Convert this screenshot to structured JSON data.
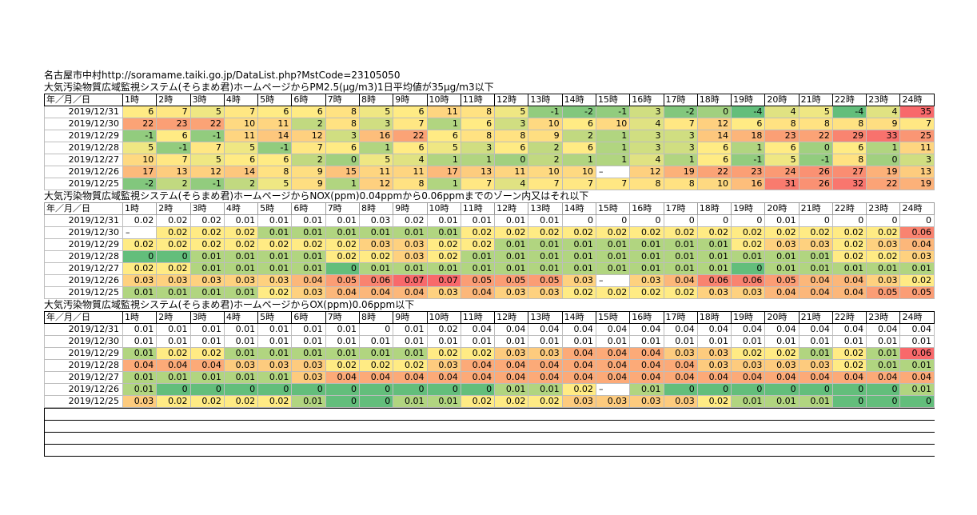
{
  "heading": {
    "city": "名古屋市中村",
    "url": "http://soramame.taiki.go.jp/DataList.php?MstCode=23105050"
  },
  "hour_headers": [
    "年／月／日",
    "1時",
    "2時",
    "3時",
    "4時",
    "5時",
    "6時",
    "7時",
    "8時",
    "9時",
    "10時",
    "11時",
    "12時",
    "13時",
    "14時",
    "15時",
    "16時",
    "17時",
    "18時",
    "19時",
    "20時",
    "21時",
    "22時",
    "23時",
    "24時"
  ],
  "sections": [
    {
      "title": "大気汚染物質広域監視システム(そらまめ君)ホームページからPM2.5(μg/m3)1日平均値が35μg/m3以下",
      "rows": [
        {
          "date": "2019/12/31",
          "values": [
            "6",
            "7",
            "5",
            "7",
            "6",
            "6",
            "8",
            "5",
            "6",
            "11",
            "8",
            "5",
            "-1",
            "-2",
            "-1",
            "3",
            "-2",
            "0",
            "-4",
            "4",
            "5",
            "-4",
            "4",
            "35"
          ]
        },
        {
          "date": "2019/12/30",
          "values": [
            "22",
            "23",
            "22",
            "10",
            "11",
            "2",
            "8",
            "3",
            "7",
            "1",
            "6",
            "3",
            "10",
            "6",
            "10",
            "4",
            "7",
            "12",
            "6",
            "8",
            "8",
            "8",
            "9",
            "7"
          ]
        },
        {
          "date": "2019/12/29",
          "values": [
            "-1",
            "6",
            "-1",
            "11",
            "14",
            "12",
            "3",
            "16",
            "22",
            "6",
            "8",
            "8",
            "9",
            "2",
            "1",
            "3",
            "3",
            "14",
            "18",
            "23",
            "22",
            "29",
            "33",
            "25"
          ]
        },
        {
          "date": "2019/12/28",
          "values": [
            "5",
            "-1",
            "7",
            "5",
            "-1",
            "7",
            "6",
            "1",
            "6",
            "5",
            "3",
            "6",
            "2",
            "6",
            "1",
            "3",
            "3",
            "6",
            "1",
            "6",
            "0",
            "6",
            "1",
            "11"
          ]
        },
        {
          "date": "2019/12/27",
          "values": [
            "10",
            "7",
            "5",
            "6",
            "6",
            "2",
            "0",
            "5",
            "4",
            "1",
            "1",
            "0",
            "2",
            "1",
            "1",
            "4",
            "1",
            "6",
            "-1",
            "5",
            "-1",
            "8",
            "0",
            "3"
          ]
        },
        {
          "date": "2019/12/26",
          "values": [
            "17",
            "13",
            "12",
            "14",
            "8",
            "9",
            "15",
            "11",
            "11",
            "17",
            "13",
            "11",
            "10",
            "10",
            "",
            "12",
            "19",
            "22",
            "23",
            "24",
            "26",
            "27",
            "19",
            "13"
          ]
        },
        {
          "date": "2019/12/25",
          "values": [
            "-2",
            "2",
            "-1",
            "2",
            "5",
            "9",
            "1",
            "12",
            "8",
            "1",
            "7",
            "4",
            "7",
            "7",
            "7",
            "8",
            "8",
            "10",
            "16",
            "31",
            "26",
            "32",
            "22",
            "19"
          ]
        }
      ]
    },
    {
      "title": "大気汚染物質広域監視システム(そらまめ君)ホームページからNOX(ppm)0.04ppmから0.06ppmまでのゾーン内又はそれ以下",
      "rows": [
        {
          "date": "2019/12/31",
          "values": [
            "0.02",
            "0.02",
            "0.02",
            "0.01",
            "0.01",
            "0.01",
            "0.01",
            "0.03",
            "0.02",
            "0.01",
            "0.01",
            "0.01",
            "0.01",
            "0",
            "0",
            "0",
            "0",
            "0",
            "0",
            "0.01",
            "0",
            "0",
            "0",
            "0"
          ]
        },
        {
          "date": "2019/12/30",
          "values": [
            "",
            "0.02",
            "0.02",
            "0.02",
            "0.01",
            "0.01",
            "0.01",
            "0.01",
            "0.01",
            "0.01",
            "0.02",
            "0.02",
            "0.02",
            "0.02",
            "0.02",
            "0.02",
            "0.02",
            "0.02",
            "0.02",
            "0.02",
            "0.02",
            "0.02",
            "0.02",
            "0.06"
          ]
        },
        {
          "date": "2019/12/29",
          "values": [
            "0.02",
            "0.02",
            "0.02",
            "0.02",
            "0.02",
            "0.02",
            "0.02",
            "0.03",
            "0.03",
            "0.02",
            "0.02",
            "0.01",
            "0.01",
            "0.01",
            "0.01",
            "0.01",
            "0.01",
            "0.01",
            "0.02",
            "0.03",
            "0.03",
            "0.02",
            "0.03",
            "0.04"
          ]
        },
        {
          "date": "2019/12/28",
          "values": [
            "0",
            "0",
            "0.01",
            "0.01",
            "0.01",
            "0.01",
            "0.02",
            "0.02",
            "0.03",
            "0.02",
            "0.01",
            "0.01",
            "0.01",
            "0.01",
            "0.01",
            "0.01",
            "0.01",
            "0.01",
            "0.01",
            "0.01",
            "0.01",
            "0.02",
            "0.02",
            "0.03"
          ]
        },
        {
          "date": "2019/12/27",
          "values": [
            "0.02",
            "0.02",
            "0.01",
            "0.01",
            "0.01",
            "0.01",
            "0",
            "0.01",
            "0.01",
            "0.01",
            "0.01",
            "0.01",
            "0.01",
            "0.01",
            "0.01",
            "0.01",
            "0.01",
            "0.01",
            "0",
            "0.01",
            "0.01",
            "0.01",
            "0.01",
            "0.01"
          ]
        },
        {
          "date": "2019/12/26",
          "values": [
            "0.03",
            "0.03",
            "0.03",
            "0.03",
            "0.03",
            "0.04",
            "0.05",
            "0.06",
            "0.07",
            "0.07",
            "0.05",
            "0.05",
            "0.05",
            "0.03",
            "",
            "0.03",
            "0.04",
            "0.06",
            "0.06",
            "0.05",
            "0.04",
            "0.04",
            "0.03",
            "0.02"
          ]
        },
        {
          "date": "2019/12/25",
          "values": [
            "0.01",
            "0.01",
            "0.01",
            "0.01",
            "0.02",
            "0.03",
            "0.04",
            "0.04",
            "0.04",
            "0.03",
            "0.04",
            "0.03",
            "0.03",
            "0.02",
            "0.02",
            "0.02",
            "0.02",
            "0.03",
            "0.03",
            "0.04",
            "0.04",
            "0.04",
            "0.05",
            "0.05"
          ]
        }
      ]
    },
    {
      "title": "大気汚染物質広域監視システム(そらまめ君)ホームページからOX(ppm)0.06ppm以下",
      "rows": [
        {
          "date": "2019/12/31",
          "values": [
            "0.01",
            "0.01",
            "0.01",
            "0.01",
            "0.01",
            "0.01",
            "0.01",
            "0",
            "0.01",
            "0.02",
            "0.04",
            "0.04",
            "0.04",
            "0.04",
            "0.04",
            "0.04",
            "0.04",
            "0.04",
            "0.04",
            "0.04",
            "0.04",
            "0.04",
            "0.04",
            "0.04"
          ]
        },
        {
          "date": "2019/12/30",
          "values": [
            "0.01",
            "0.01",
            "0.01",
            "0.01",
            "0.01",
            "0.01",
            "0.01",
            "0.01",
            "0.01",
            "0.01",
            "0.01",
            "0.01",
            "0.01",
            "0.01",
            "0.01",
            "0.01",
            "0.01",
            "0.01",
            "0.01",
            "0.01",
            "0.01",
            "0.01",
            "0.01",
            "0.01"
          ]
        },
        {
          "date": "2019/12/29",
          "values": [
            "0.01",
            "0.02",
            "0.02",
            "0.01",
            "0.01",
            "0.01",
            "0.01",
            "0.01",
            "0.01",
            "0.02",
            "0.02",
            "0.03",
            "0.03",
            "0.04",
            "0.04",
            "0.04",
            "0.03",
            "0.03",
            "0.02",
            "0.02",
            "0.01",
            "0.02",
            "0.01",
            "0.06"
          ]
        },
        {
          "date": "2019/12/28",
          "values": [
            "0.04",
            "0.04",
            "0.04",
            "0.03",
            "0.03",
            "0.03",
            "0.02",
            "0.02",
            "0.02",
            "0.03",
            "0.04",
            "0.04",
            "0.04",
            "0.04",
            "0.04",
            "0.04",
            "0.04",
            "0.03",
            "0.03",
            "0.03",
            "0.03",
            "0.02",
            "0.01",
            "0.01"
          ]
        },
        {
          "date": "2019/12/27",
          "values": [
            "0.01",
            "0.01",
            "0.01",
            "0.01",
            "0.01",
            "0.03",
            "0.04",
            "0.04",
            "0.04",
            "0.04",
            "0.04",
            "0.04",
            "0.04",
            "0.04",
            "0.04",
            "0.04",
            "0.04",
            "0.04",
            "0.04",
            "0.04",
            "0.04",
            "0.04",
            "0.04",
            "0.04"
          ]
        },
        {
          "date": "2019/12/26",
          "values": [
            "0.01",
            "0",
            "0",
            "0",
            "0",
            "0",
            "0",
            "0",
            "0",
            "0",
            "0",
            "0.01",
            "0.01",
            "0.02",
            "",
            "0.01",
            "0",
            "0",
            "0",
            "0",
            "0",
            "0",
            "0",
            "0.01"
          ]
        },
        {
          "date": "2019/12/25",
          "values": [
            "0.03",
            "0.02",
            "0.02",
            "0.02",
            "0.02",
            "0.01",
            "0",
            "0",
            "0.01",
            "0.01",
            "0.02",
            "0.02",
            "0.02",
            "0.03",
            "0.03",
            "0.03",
            "0.03",
            "0.02",
            "0.01",
            "0.01",
            "0.01",
            "0",
            "0",
            "0"
          ]
        }
      ]
    }
  ],
  "dash_mark": "–",
  "colors": {
    "green": "#63be7b",
    "yellow": "#ffeb84",
    "red": "#f8696b"
  }
}
